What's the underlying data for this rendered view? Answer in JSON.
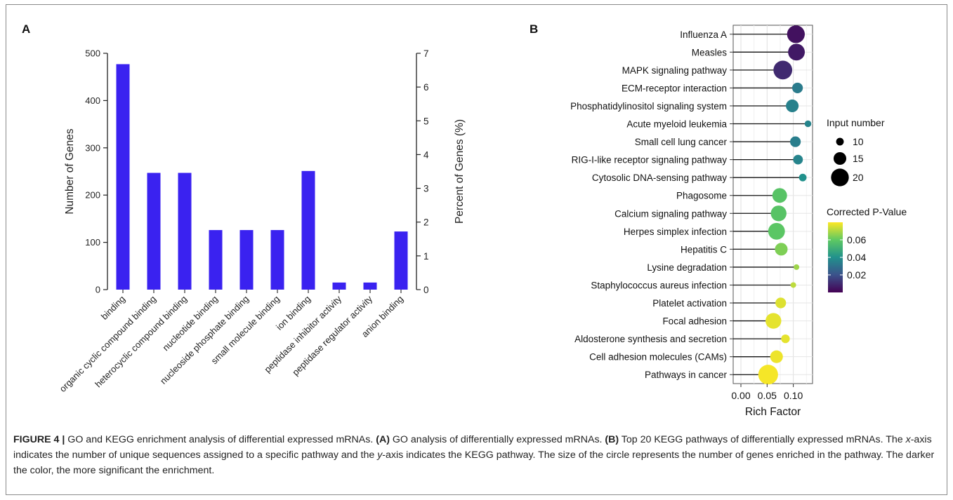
{
  "chart_data": [
    {
      "type": "bar",
      "panel_label": "A",
      "categories": [
        "binding",
        "organic cyclic compound binding",
        "heterocyclic compound binding",
        "nucleotide binding",
        "nucleoside phosphate binding",
        "small molecule binding",
        "ion binding",
        "peptidase inhibitor activity",
        "peptidase regulator activity",
        "anion binding"
      ],
      "values": [
        477,
        247,
        247,
        126,
        126,
        126,
        251,
        15,
        15,
        123
      ],
      "ylabel": "Number of Genes",
      "ylim": [
        0,
        500
      ],
      "yticks": [
        "0",
        "100",
        "200",
        "300",
        "400",
        "500"
      ],
      "y2label": "Percent of Genes (%)",
      "y2lim": [
        0,
        7
      ],
      "y2ticks": [
        "0",
        "1",
        "2",
        "3",
        "4",
        "5",
        "6",
        "7"
      ],
      "bar_color": "#3a22f0",
      "grid": false
    },
    {
      "type": "scatter",
      "subtype": "lollipop",
      "panel_label": "B",
      "pathways": [
        "Influenza A",
        "Measles",
        "MAPK signaling pathway",
        "ECM-receptor interaction",
        "Phosphatidylinositol signaling system",
        "Acute myeloid leukemia",
        "Small cell lung cancer",
        "RIG-I-like receptor signaling pathway",
        "Cytosolic DNA-sensing pathway",
        "Phagosome",
        "Calcium signaling pathway",
        "Herpes simplex infection",
        "Hepatitis C",
        "Lysine degradation",
        "Staphylococcus aureus infection",
        "Platelet activation",
        "Focal adhesion",
        "Aldosterone synthesis and secretion",
        "Cell adhesion molecules (CAMs)",
        "Pathways in cancer"
      ],
      "rich_factor": [
        0.105,
        0.106,
        0.08,
        0.108,
        0.098,
        0.128,
        0.104,
        0.109,
        0.118,
        0.074,
        0.072,
        0.068,
        0.077,
        0.106,
        0.1,
        0.076,
        0.062,
        0.085,
        0.068,
        0.052
      ],
      "input_number": [
        20,
        19,
        21,
        13,
        15,
        9,
        13,
        12,
        10,
        17,
        18,
        19,
        15,
        8,
        8,
        13,
        18,
        11,
        15,
        22
      ],
      "corrected_p_value": [
        0.004,
        0.006,
        0.01,
        0.033,
        0.035,
        0.036,
        0.034,
        0.036,
        0.04,
        0.058,
        0.058,
        0.059,
        0.064,
        0.068,
        0.072,
        0.076,
        0.077,
        0.077,
        0.078,
        0.079
      ],
      "xlabel": "Rich Factor",
      "xticks": [
        "0.00",
        "0.05",
        "0.10"
      ],
      "xlim": [
        0,
        0.13
      ],
      "size_legend": {
        "title": "Input number",
        "labels": [
          "10",
          "15",
          "20"
        ],
        "values": [
          10,
          15,
          20
        ]
      },
      "color_legend": {
        "title": "Corrected P-Value",
        "labels": [
          "0.06",
          "0.04",
          "0.02"
        ],
        "values": [
          0.06,
          0.04,
          0.02
        ],
        "range": [
          0,
          0.08
        ]
      },
      "grid": true,
      "legend_position": "right"
    }
  ],
  "caption": {
    "label": "FIGURE 4 |",
    "t1": " GO and KEGG enrichment analysis of differential expressed mRNAs. ",
    "a_label": "(A)",
    "t2": " GO analysis of differentially expressed mRNAs. ",
    "b_label": "(B)",
    "t3": " Top 20 KEGG pathways of differentially expressed mRNAs. The ",
    "x_italic": "x",
    "t4": "-axis indicates the number of unique sequences assigned to a specific pathway and the ",
    "y_italic": "y",
    "t5": "-axis indicates the KEGG pathway. The size of the circle represents the number of genes enriched in the pathway. The darker the color, the more significant the enrichment."
  }
}
